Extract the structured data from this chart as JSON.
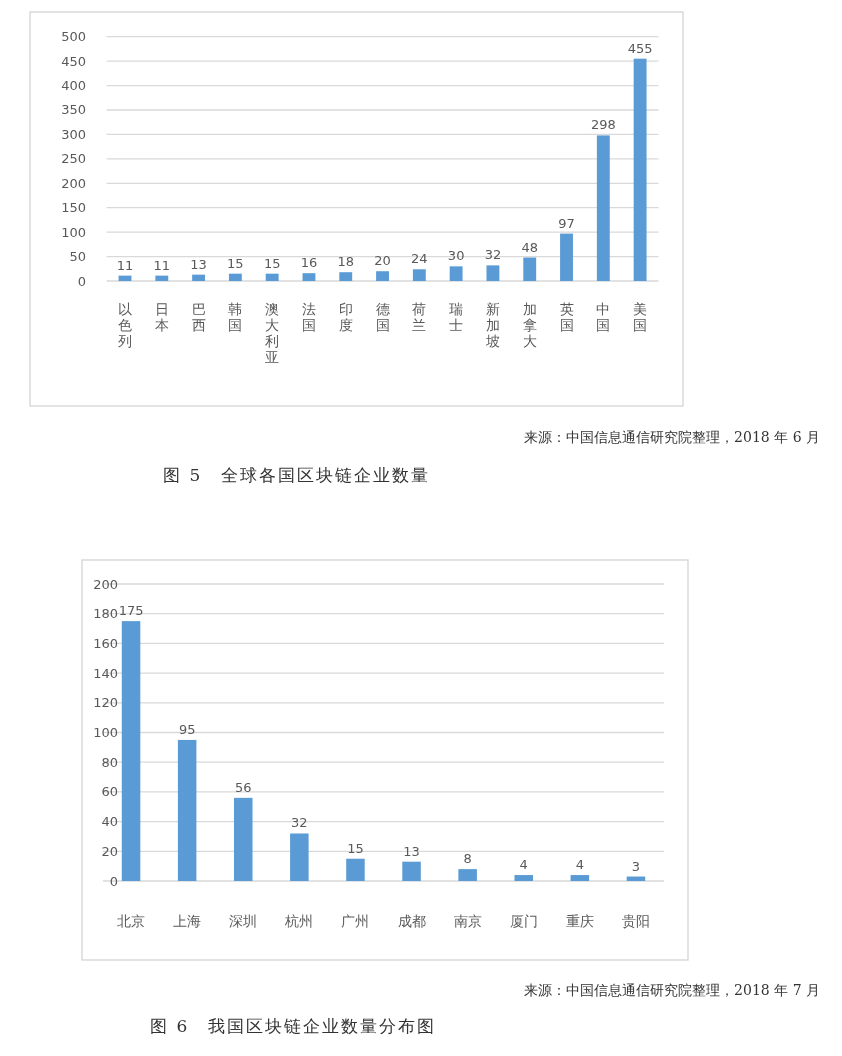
{
  "chart_data": [
    {
      "type": "bar",
      "title": "图 5　全球各国区块链企业数量",
      "annotations": [
        "来源：中国信息通信研究院整理，2018 年 6 月"
      ],
      "categories": [
        "以色列",
        "日本",
        "巴西",
        "韩国",
        "澳大利亚",
        "法国",
        "印度",
        "德国",
        "荷兰",
        "瑞士",
        "新加坡",
        "加拿大",
        "英国",
        "中国",
        "美国"
      ],
      "values": [
        11,
        11,
        13,
        15,
        15,
        16,
        18,
        20,
        24,
        30,
        32,
        48,
        97,
        298,
        455
      ],
      "color": "#5b9bd5",
      "ylim": [
        0,
        500
      ],
      "yticks": [
        0,
        50,
        100,
        150,
        200,
        250,
        300,
        350,
        400,
        450,
        500
      ],
      "grid": "y",
      "data_labels": true
    },
    {
      "type": "bar",
      "title": "图 6　我国区块链企业数量分布图",
      "annotations": [
        "来源：中国信息通信研究院整理，2018 年 7 月"
      ],
      "categories": [
        "北京",
        "上海",
        "深圳",
        "杭州",
        "广州",
        "成都",
        "南京",
        "厦门",
        "重庆",
        "贵阳"
      ],
      "values": [
        175,
        95,
        56,
        32,
        15,
        13,
        8,
        4,
        4,
        3
      ],
      "color": "#5b9bd5",
      "ylim": [
        0,
        200
      ],
      "yticks": [
        0,
        20,
        40,
        60,
        80,
        100,
        120,
        140,
        160,
        180,
        200
      ],
      "grid": "y",
      "data_labels": true
    }
  ]
}
